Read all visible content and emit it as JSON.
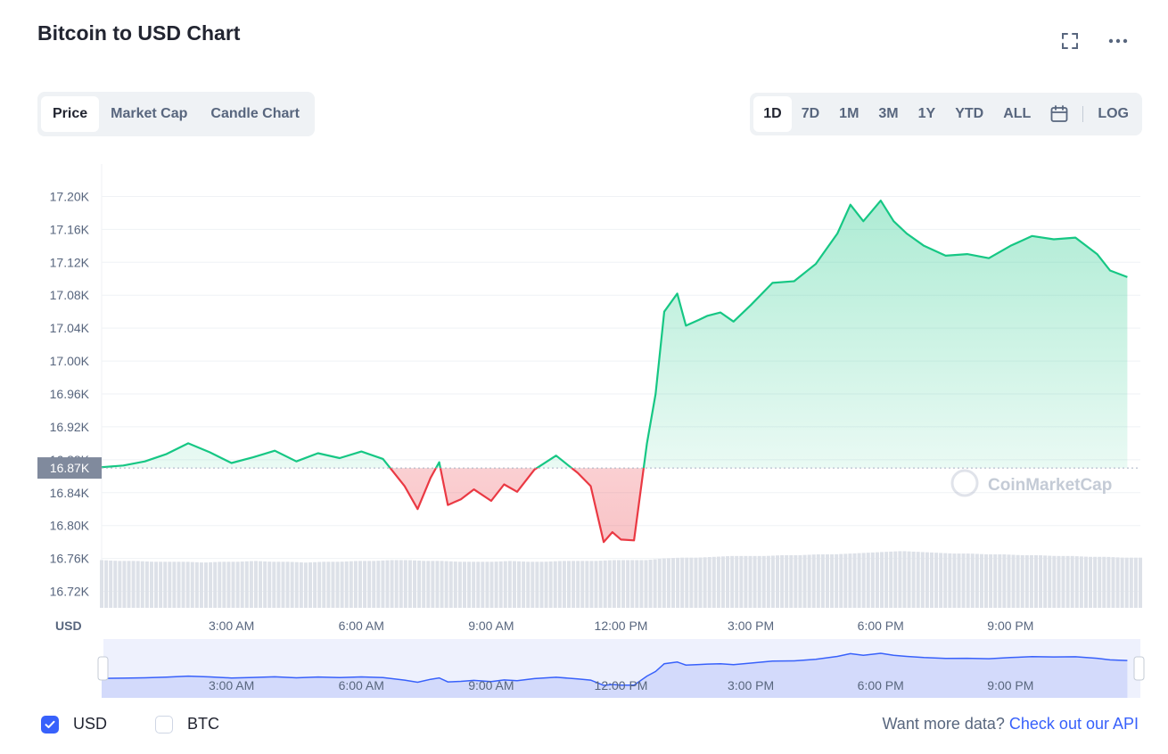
{
  "header": {
    "title": "Bitcoin to USD Chart"
  },
  "icons": {
    "expand": "expand-icon",
    "more": "more-horizontal-icon",
    "calendar": "calendar-icon"
  },
  "tabs": [
    {
      "label": "Price",
      "active": true
    },
    {
      "label": "Market Cap",
      "active": false
    },
    {
      "label": "Candle Chart",
      "active": false
    }
  ],
  "ranges": [
    {
      "label": "1D",
      "active": true
    },
    {
      "label": "7D",
      "active": false
    },
    {
      "label": "1M",
      "active": false
    },
    {
      "label": "3M",
      "active": false
    },
    {
      "label": "1Y",
      "active": false
    },
    {
      "label": "YTD",
      "active": false
    },
    {
      "label": "ALL",
      "active": false
    }
  ],
  "log_label": "LOG",
  "colors": {
    "up": "#16c784",
    "down": "#ea3943",
    "accent": "#3861fb",
    "text": "#222531",
    "muted": "#58667e"
  },
  "chart_data": {
    "type": "area",
    "ylabel": "USD",
    "watermark": "CoinMarketCap",
    "reference_value": 16870,
    "reference_label": "16.87K",
    "ylim": [
      16700,
      17220
    ],
    "ytick_values": [
      16720,
      16760,
      16800,
      16840,
      16880,
      16920,
      16960,
      17000,
      17040,
      17080,
      17120,
      17160,
      17200
    ],
    "ytick_labels": [
      "16.72K",
      "16.76K",
      "16.80K",
      "16.84K",
      "16.88K",
      "16.92K",
      "16.96K",
      "17.00K",
      "17.04K",
      "17.08K",
      "17.12K",
      "17.16K",
      "17.20K"
    ],
    "xtick_labels": [
      "3:00 AM",
      "6:00 AM",
      "9:00 AM",
      "12:00 PM",
      "3:00 PM",
      "6:00 PM",
      "9:00 PM"
    ],
    "xtick_hours": [
      3,
      6,
      9,
      12,
      15,
      18,
      21
    ],
    "x_hours": [
      0.0,
      0.5,
      1.0,
      1.5,
      2.0,
      2.5,
      3.0,
      3.5,
      4.0,
      4.5,
      5.0,
      5.5,
      6.0,
      6.5,
      7.0,
      7.3,
      7.6,
      7.8,
      8.0,
      8.3,
      8.6,
      9.0,
      9.3,
      9.6,
      10.0,
      10.5,
      11.0,
      11.3,
      11.6,
      11.8,
      12.0,
      12.3,
      12.6,
      12.8,
      13.0,
      13.3,
      13.5,
      13.8,
      14.0,
      14.3,
      14.6,
      15.0,
      15.5,
      16.0,
      16.5,
      17.0,
      17.3,
      17.6,
      18.0,
      18.3,
      18.6,
      19.0,
      19.5,
      20.0,
      20.5,
      21.0,
      21.5,
      22.0,
      22.5,
      23.0,
      23.3,
      23.7
    ],
    "price": [
      16871,
      16873,
      16878,
      16887,
      16900,
      16889,
      16876,
      16883,
      16891,
      16878,
      16888,
      16882,
      16890,
      16881,
      16848,
      16820,
      16858,
      16877,
      16825,
      16832,
      16844,
      16830,
      16850,
      16841,
      16868,
      16885,
      16864,
      16848,
      16780,
      16792,
      16783,
      16782,
      16900,
      16960,
      17060,
      17082,
      17043,
      17050,
      17055,
      17059,
      17048,
      17068,
      17095,
      17097,
      17118,
      17155,
      17190,
      17170,
      17195,
      17170,
      17155,
      17140,
      17128,
      17130,
      17125,
      17140,
      17152,
      17148,
      17150,
      17130,
      17110,
      17102
    ],
    "volume": [
      16758,
      16757,
      16757,
      16756,
      16756,
      16756,
      16755,
      16756,
      16756,
      16757,
      16756,
      16756,
      16755,
      16756,
      16756,
      16757,
      16757,
      16758,
      16758,
      16757,
      16757,
      16756,
      16756,
      16756,
      16757,
      16756,
      16756,
      16757,
      16757,
      16757,
      16758,
      16758,
      16758,
      16760,
      16761,
      16761,
      16762,
      16763,
      16763,
      16763,
      16764,
      16764,
      16765,
      16765,
      16766,
      16767,
      16768,
      16769,
      16768,
      16767,
      16766,
      16766,
      16765,
      16765,
      16764,
      16764,
      16763,
      16763,
      16762,
      16762,
      16761,
      16761
    ]
  },
  "footer": {
    "usd_label": "USD",
    "usd_checked": true,
    "btc_label": "BTC",
    "btc_checked": false,
    "api_text": "Want more data?",
    "api_link": "Check out our API"
  }
}
